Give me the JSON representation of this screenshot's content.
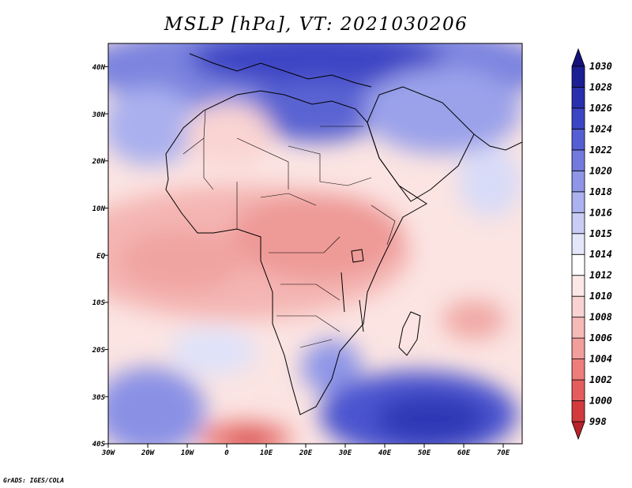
{
  "title": "MSLP [hPa], VT: 2021030206",
  "footer": "GrADS: IGES/COLA",
  "map": {
    "lon_range": [
      -30,
      75
    ],
    "lat_range": [
      -40,
      45
    ],
    "lon_ticks": [
      "30W",
      "20W",
      "10W",
      "0",
      "10E",
      "20E",
      "30E",
      "40E",
      "50E",
      "60E",
      "70E"
    ],
    "lat_ticks": [
      "40S",
      "30S",
      "20S",
      "10S",
      "EQ",
      "10N",
      "20N",
      "30N",
      "40N"
    ]
  },
  "colorbar": {
    "levels": [
      "998",
      "1000",
      "1002",
      "1004",
      "1006",
      "1008",
      "1010",
      "1012",
      "1014",
      "1015",
      "1016",
      "1018",
      "1020",
      "1022",
      "1024",
      "1026",
      "1028",
      "1030"
    ],
    "colors": [
      "#b8222a",
      "#d23a3c",
      "#e55d5c",
      "#ec7e7c",
      "#f19e9c",
      "#f5bab8",
      "#f9d3d1",
      "#fce8e6",
      "#ffffff",
      "#e4e6fa",
      "#c9cdf5",
      "#acb2ef",
      "#8f96e7",
      "#727ade",
      "#555fd3",
      "#3c45c4",
      "#2a2fae",
      "#1c1f93",
      "#14137a"
    ]
  }
}
